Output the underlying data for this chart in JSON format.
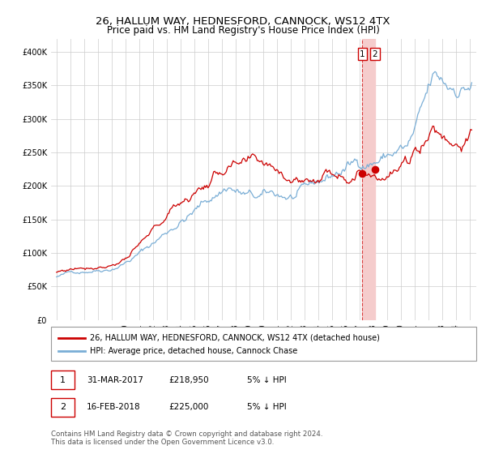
{
  "title": "26, HALLUM WAY, HEDNESFORD, CANNOCK, WS12 4TX",
  "subtitle": "Price paid vs. HM Land Registry's House Price Index (HPI)",
  "legend_label_red": "26, HALLUM WAY, HEDNESFORD, CANNOCK, WS12 4TX (detached house)",
  "legend_label_blue": "HPI: Average price, detached house, Cannock Chase",
  "annotation1_date": "31-MAR-2017",
  "annotation1_price": "£218,950",
  "annotation1_note": "5% ↓ HPI",
  "annotation2_date": "16-FEB-2018",
  "annotation2_price": "£225,000",
  "annotation2_note": "5% ↓ HPI",
  "footer": "Contains HM Land Registry data © Crown copyright and database right 2024.\nThis data is licensed under the Open Government Licence v3.0.",
  "red_color": "#cc0000",
  "blue_color": "#7aaed6",
  "highlight_color": "#f5cccc",
  "ylim": [
    0,
    420000
  ],
  "yticks": [
    0,
    50000,
    100000,
    150000,
    200000,
    250000,
    300000,
    350000,
    400000
  ],
  "sale1_date_num": 2017.23,
  "sale1_price": 218950,
  "sale2_date_num": 2018.12,
  "sale2_price": 225000,
  "figwidth": 6.0,
  "figheight": 5.6,
  "dpi": 100
}
